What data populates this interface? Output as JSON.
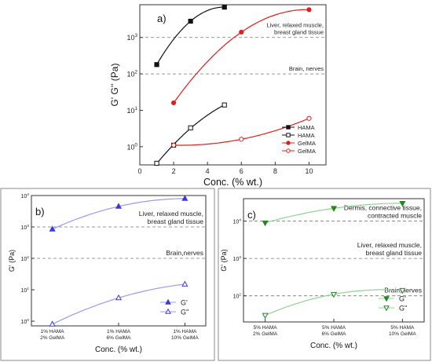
{
  "chart_data": [
    {
      "id": "a",
      "type": "scatter",
      "panel_label": "a)",
      "xlabel": "Conc. (% wt.)",
      "ylabel": "G' G'' (Pa)",
      "xlim": [
        0,
        11
      ],
      "ylim_log10": [
        -0.5,
        3.9
      ],
      "y_scale": "log",
      "x_ticks": [
        "0",
        "2",
        "4",
        "6",
        "8",
        "10"
      ],
      "x_tick_values": [
        0,
        2,
        4,
        6,
        8,
        10
      ],
      "y_tick_exponents": [
        0,
        1,
        2,
        3
      ],
      "y_tick_labels": [
        "10",
        "10",
        "10",
        "10"
      ],
      "y_tick_sup": [
        "0",
        "1",
        "2",
        "3"
      ],
      "reference_lines": [
        {
          "value": 1000,
          "label_lines": [
            "Liver, relaxed muscle,",
            "breast gland tissue"
          ]
        },
        {
          "value": 100,
          "label_lines": [
            "Brain, nerves"
          ]
        }
      ],
      "legend": {
        "position": "bottom-right",
        "entries": [
          "HAMA",
          "HAMA",
          "GelMA",
          "GelMA"
        ]
      },
      "series": [
        {
          "name": "HAMA",
          "color": "#111111",
          "marker": "filled-square",
          "x": [
            1,
            3,
            5
          ],
          "y": [
            180,
            2800,
            6800
          ]
        },
        {
          "name": "HAMA",
          "color": "#111111",
          "marker": "open-square",
          "x": [
            1,
            2,
            3,
            5
          ],
          "y": [
            0.35,
            1.1,
            3.3,
            14
          ]
        },
        {
          "name": "GelMA",
          "color": "#e01e1e",
          "marker": "filled-circle",
          "x": [
            2,
            6,
            10
          ],
          "y": [
            16,
            1400,
            5800
          ]
        },
        {
          "name": "GelMA",
          "color": "#e01e1e",
          "marker": "open-circle",
          "x": [
            2,
            6,
            10
          ],
          "y": [
            1.1,
            1.6,
            6
          ]
        }
      ]
    },
    {
      "id": "b",
      "type": "scatter",
      "panel_label": "b)",
      "xlabel": "Conc. (% wt.)",
      "ylabel": "G' (Pa)",
      "y_scale": "log",
      "ylim_log10": [
        -0.15,
        4
      ],
      "y_tick_exponents": [
        0,
        1,
        2,
        3,
        4
      ],
      "y_tick_labels": [
        "10",
        "10",
        "10",
        "10",
        "10"
      ],
      "y_tick_sup": [
        "0",
        "1",
        "2",
        "3",
        "4"
      ],
      "categories": [
        [
          "1% HAMA",
          "2% GelMA"
        ],
        [
          "1% HAMA",
          "6% GelMA"
        ],
        [
          "1% HAMA",
          "10% GelMA"
        ]
      ],
      "reference_lines": [
        {
          "value": 1000,
          "label_lines": [
            "Liver, relaxed muscle,",
            "breast  gland tissue"
          ]
        },
        {
          "value": 100,
          "label_lines": [
            "Brain,nerves"
          ]
        }
      ],
      "legend": {
        "position": "bottom-right",
        "entries": [
          "G'",
          "G''"
        ]
      },
      "series": [
        {
          "name": "G'",
          "color": "#3a3ad8",
          "line_color": "#9a9af0",
          "marker": "filled-triangle-up",
          "values": [
            850,
            4500,
            8000
          ]
        },
        {
          "name": "G''",
          "color": "#3a3ad8",
          "line_color": "#9a9af0",
          "marker": "open-triangle-up",
          "values": [
            0.8,
            5.5,
            15
          ]
        }
      ]
    },
    {
      "id": "c",
      "type": "scatter",
      "panel_label": "c)",
      "xlabel": "Conc. (% wt.)",
      "ylabel": "G' (Pa)",
      "y_scale": "log",
      "ylim_log10": [
        1.3,
        4.6
      ],
      "y_tick_exponents": [
        2,
        3,
        4
      ],
      "y_tick_labels": [
        "10",
        "10",
        "10"
      ],
      "y_tick_sup": [
        "2",
        "3",
        "4"
      ],
      "categories": [
        [
          "5% HAMA",
          "2% GelMA"
        ],
        [
          "5% HAMA",
          "6% GelMA"
        ],
        [
          "5% HAMA",
          "10% GelMA"
        ]
      ],
      "reference_lines": [
        {
          "value": 10000,
          "label_lines": [
            "Dermis, connective tissue,",
            "contracted muscle"
          ]
        },
        {
          "value": 1000,
          "label_lines": [
            "Liver, relaxed muscle,",
            "breast  gland tissue"
          ]
        },
        {
          "value": 100,
          "label_lines": [
            "Brain,nerves"
          ]
        }
      ],
      "legend": {
        "position": "bottom-right",
        "entries": [
          "G'",
          "G''"
        ]
      },
      "series": [
        {
          "name": "G'",
          "color": "#1e8a1e",
          "line_color": "#8fd48f",
          "marker": "filled-triangle-down",
          "values": [
            9000,
            22000,
            30000
          ]
        },
        {
          "name": "G''",
          "color": "#1e8a1e",
          "line_color": "#8fd48f",
          "marker": "open-triangle-down",
          "values": [
            30,
            110,
            140
          ]
        }
      ]
    }
  ]
}
